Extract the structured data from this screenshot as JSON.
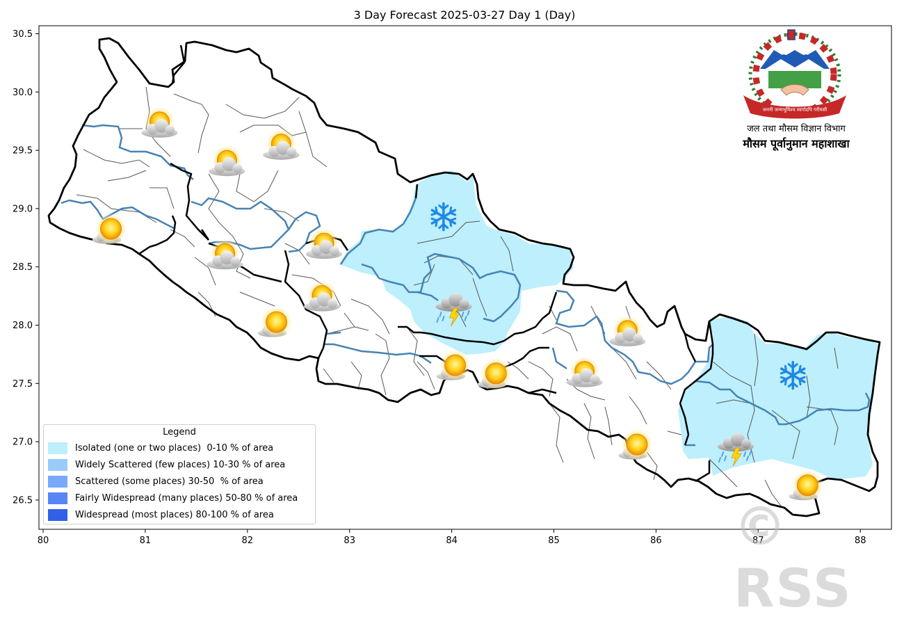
{
  "map": {
    "title": "3 Day Forecast 2025-03-27 Day 1 (Day)",
    "x_axis": {
      "range": [
        80,
        88.3
      ],
      "ticks": [
        "80",
        "81",
        "82",
        "83",
        "84",
        "85",
        "86",
        "87",
        "88"
      ]
    },
    "y_axis": {
      "range": [
        26.25,
        30.55
      ],
      "ticks": [
        "26.5",
        "27.0",
        "27.5",
        "28.0",
        "28.5",
        "29.0",
        "29.5",
        "30.0",
        "30.5"
      ]
    },
    "legend": {
      "title": "Legend",
      "items": [
        {
          "label": "Isolated (one or two places)  0-10 % of area",
          "color": "#bdeffc"
        },
        {
          "label": "Widely Scattered (few places) 10-30 % of area",
          "color": "#9acbfc"
        },
        {
          "label": "Scattered (some places) 30-50  % of area",
          "color": "#78a9fa"
        },
        {
          "label": "Fairly Widespread (many places) 50-80 % of area",
          "color": "#5786f7"
        },
        {
          "label": "Widespread (most places) 80-100 % of area",
          "color": "#3260e8"
        }
      ]
    },
    "shaded_regions": [
      {
        "name": "central-north",
        "category": "Isolated (one or two places)  0-10 % of area",
        "color": "#bdeffc"
      },
      {
        "name": "east",
        "category": "Isolated (one or two places)  0-10 % of area",
        "color": "#bdeffc"
      }
    ],
    "weather_icons": [
      {
        "type": "partly-cloudy-icon",
        "lon": 81.14,
        "lat": 29.71
      },
      {
        "type": "partly-cloudy-icon",
        "lon": 81.8,
        "lat": 29.38
      },
      {
        "type": "partly-cloudy-icon",
        "lon": 82.33,
        "lat": 29.52
      },
      {
        "type": "sunny-icon",
        "lon": 80.65,
        "lat": 28.82
      },
      {
        "type": "partly-cloudy-icon",
        "lon": 81.78,
        "lat": 28.58
      },
      {
        "type": "partly-cloudy-icon",
        "lon": 82.75,
        "lat": 28.67
      },
      {
        "type": "partly-cloudy-icon",
        "lon": 82.73,
        "lat": 28.22
      },
      {
        "type": "sunny-icon",
        "lon": 82.27,
        "lat": 28.02
      },
      {
        "type": "snowflake-icon",
        "lon": 83.92,
        "lat": 28.93
      },
      {
        "type": "thunderstorm-icon",
        "lon": 84.02,
        "lat": 28.17
      },
      {
        "type": "sunny-icon",
        "lon": 84.02,
        "lat": 27.65
      },
      {
        "type": "sunny-icon",
        "lon": 84.42,
        "lat": 27.58
      },
      {
        "type": "partly-cloudy-icon",
        "lon": 85.3,
        "lat": 27.57
      },
      {
        "type": "partly-cloudy-icon",
        "lon": 85.72,
        "lat": 27.92
      },
      {
        "type": "sunny-icon",
        "lon": 85.8,
        "lat": 26.97
      },
      {
        "type": "snowflake-icon",
        "lon": 87.34,
        "lat": 27.57
      },
      {
        "type": "thunderstorm-icon",
        "lon": 86.78,
        "lat": 26.97
      },
      {
        "type": "sunny-icon",
        "lon": 87.47,
        "lat": 26.62
      }
    ]
  },
  "logo": {
    "agency_name": "जल तथा मौसम विज्ञान विभाग",
    "division_name": "मौसम पूर्वानुमान महाशाखा",
    "seal_text": "जननी जन्मभूमिश्च स्वर्गादपि गरीयसी"
  },
  "watermark": "© RSS"
}
